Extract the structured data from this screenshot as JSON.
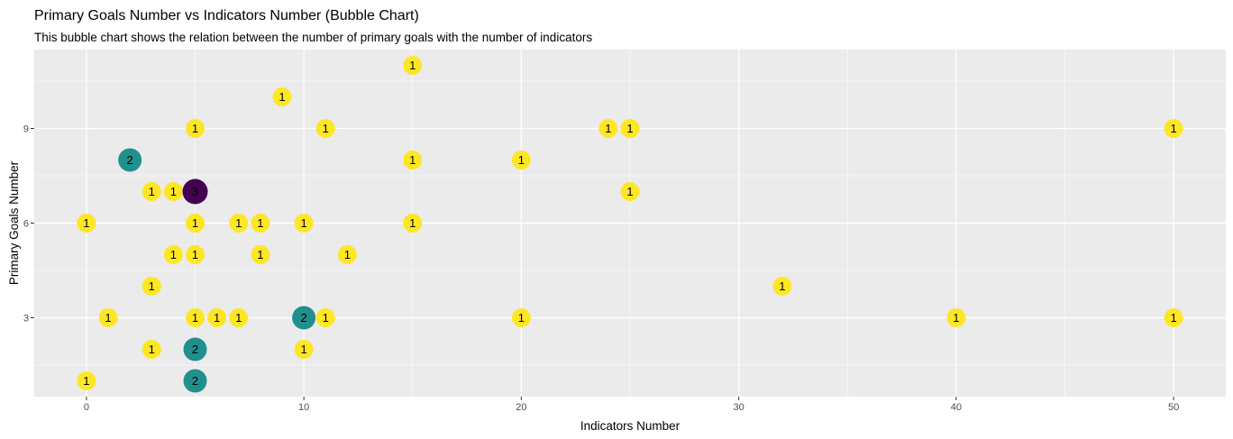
{
  "chart_data": {
    "type": "scatter",
    "title": "Primary Goals Number vs Indicators Number (Bubble Chart)",
    "subtitle": "This bubble chart shows the relation between the number of primary goals with the number of indicators",
    "xlabel": "Indicators Number",
    "ylabel": "Primary Goals Number",
    "xlim": [
      -2.4,
      52.4
    ],
    "ylim": [
      0.5,
      11.5
    ],
    "x_ticks": [
      0,
      10,
      20,
      30,
      40,
      50
    ],
    "y_ticks": [
      3,
      6,
      9
    ],
    "grid": true,
    "size_colors": {
      "1": "#FDE725",
      "2": "#21908C",
      "3": "#440154"
    },
    "points": [
      {
        "x": 15,
        "y": 11,
        "count": 1
      },
      {
        "x": 9,
        "y": 10,
        "count": 1
      },
      {
        "x": 5,
        "y": 9,
        "count": 1
      },
      {
        "x": 11,
        "y": 9,
        "count": 1
      },
      {
        "x": 24,
        "y": 9,
        "count": 1
      },
      {
        "x": 25,
        "y": 9,
        "count": 1
      },
      {
        "x": 50,
        "y": 9,
        "count": 1
      },
      {
        "x": 2,
        "y": 8,
        "count": 2
      },
      {
        "x": 15,
        "y": 8,
        "count": 1
      },
      {
        "x": 20,
        "y": 8,
        "count": 1
      },
      {
        "x": 3,
        "y": 7,
        "count": 1
      },
      {
        "x": 4,
        "y": 7,
        "count": 1
      },
      {
        "x": 5,
        "y": 7,
        "count": 3
      },
      {
        "x": 25,
        "y": 7,
        "count": 1
      },
      {
        "x": 0,
        "y": 6,
        "count": 1
      },
      {
        "x": 5,
        "y": 6,
        "count": 1
      },
      {
        "x": 7,
        "y": 6,
        "count": 1
      },
      {
        "x": 8,
        "y": 6,
        "count": 1
      },
      {
        "x": 10,
        "y": 6,
        "count": 1
      },
      {
        "x": 15,
        "y": 6,
        "count": 1
      },
      {
        "x": 4,
        "y": 5,
        "count": 1
      },
      {
        "x": 5,
        "y": 5,
        "count": 1
      },
      {
        "x": 8,
        "y": 5,
        "count": 1
      },
      {
        "x": 12,
        "y": 5,
        "count": 1
      },
      {
        "x": 3,
        "y": 4,
        "count": 1
      },
      {
        "x": 32,
        "y": 4,
        "count": 1
      },
      {
        "x": 1,
        "y": 3,
        "count": 1
      },
      {
        "x": 5,
        "y": 3,
        "count": 1
      },
      {
        "x": 6,
        "y": 3,
        "count": 1
      },
      {
        "x": 7,
        "y": 3,
        "count": 1
      },
      {
        "x": 10,
        "y": 3,
        "count": 2
      },
      {
        "x": 11,
        "y": 3,
        "count": 1
      },
      {
        "x": 20,
        "y": 3,
        "count": 1
      },
      {
        "x": 40,
        "y": 3,
        "count": 1
      },
      {
        "x": 50,
        "y": 3,
        "count": 1
      },
      {
        "x": 3,
        "y": 2,
        "count": 1
      },
      {
        "x": 5,
        "y": 2,
        "count": 2
      },
      {
        "x": 10,
        "y": 2,
        "count": 1
      },
      {
        "x": 0,
        "y": 1,
        "count": 1
      },
      {
        "x": 5,
        "y": 1,
        "count": 2
      }
    ]
  }
}
